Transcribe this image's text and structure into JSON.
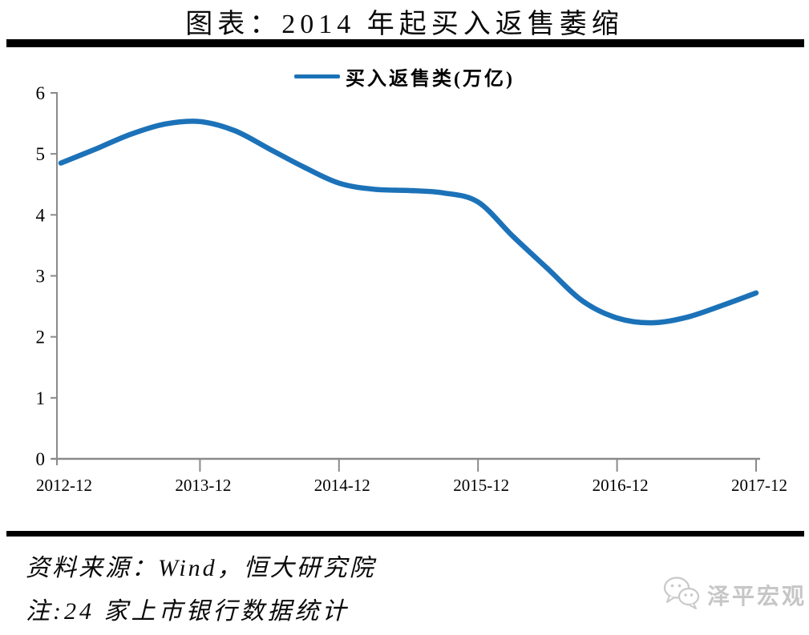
{
  "title": "图表：2014 年起买入返售萎缩",
  "legend": {
    "label": "买入返售类(万亿)",
    "swatch_color": "#1c72b8"
  },
  "chart_data": {
    "type": "line",
    "title": "图表：2014 年起买入返售萎缩",
    "legend_position": "top",
    "grid": false,
    "x": [
      "2012-12",
      "2013-03",
      "2013-06",
      "2013-09",
      "2013-12",
      "2014-03",
      "2014-06",
      "2014-09",
      "2014-12",
      "2015-03",
      "2015-06",
      "2015-09",
      "2015-12",
      "2016-03",
      "2016-06",
      "2016-09",
      "2016-12",
      "2017-03",
      "2017-06",
      "2017-09",
      "2017-12"
    ],
    "series": [
      {
        "name": "买入返售类(万亿)",
        "color": "#1c72b8",
        "values": [
          4.85,
          5.08,
          5.32,
          5.49,
          5.53,
          5.38,
          5.08,
          4.78,
          4.52,
          4.42,
          4.4,
          4.36,
          4.21,
          3.65,
          3.12,
          2.59,
          2.31,
          2.23,
          2.32,
          2.51,
          2.72
        ]
      }
    ],
    "x_tick_labels": [
      "2012-12",
      "2013-12",
      "2014-12",
      "2015-12",
      "2016-12",
      "2017-12"
    ],
    "y_ticks": [
      0,
      1,
      2,
      3,
      4,
      5,
      6
    ],
    "ylim": [
      0,
      6
    ],
    "xlabel": "",
    "ylabel": "",
    "axis_color": "#8a8a8a",
    "tick_label_color": "#000000"
  },
  "footer": {
    "source": "资料来源：Wind，恒大研究院",
    "note": "注:24 家上市银行数据统计",
    "watermark": {
      "text": "泽平宏观",
      "color": "#c6c6c6",
      "icon": "wechat-chat-bubbles-icon"
    }
  }
}
